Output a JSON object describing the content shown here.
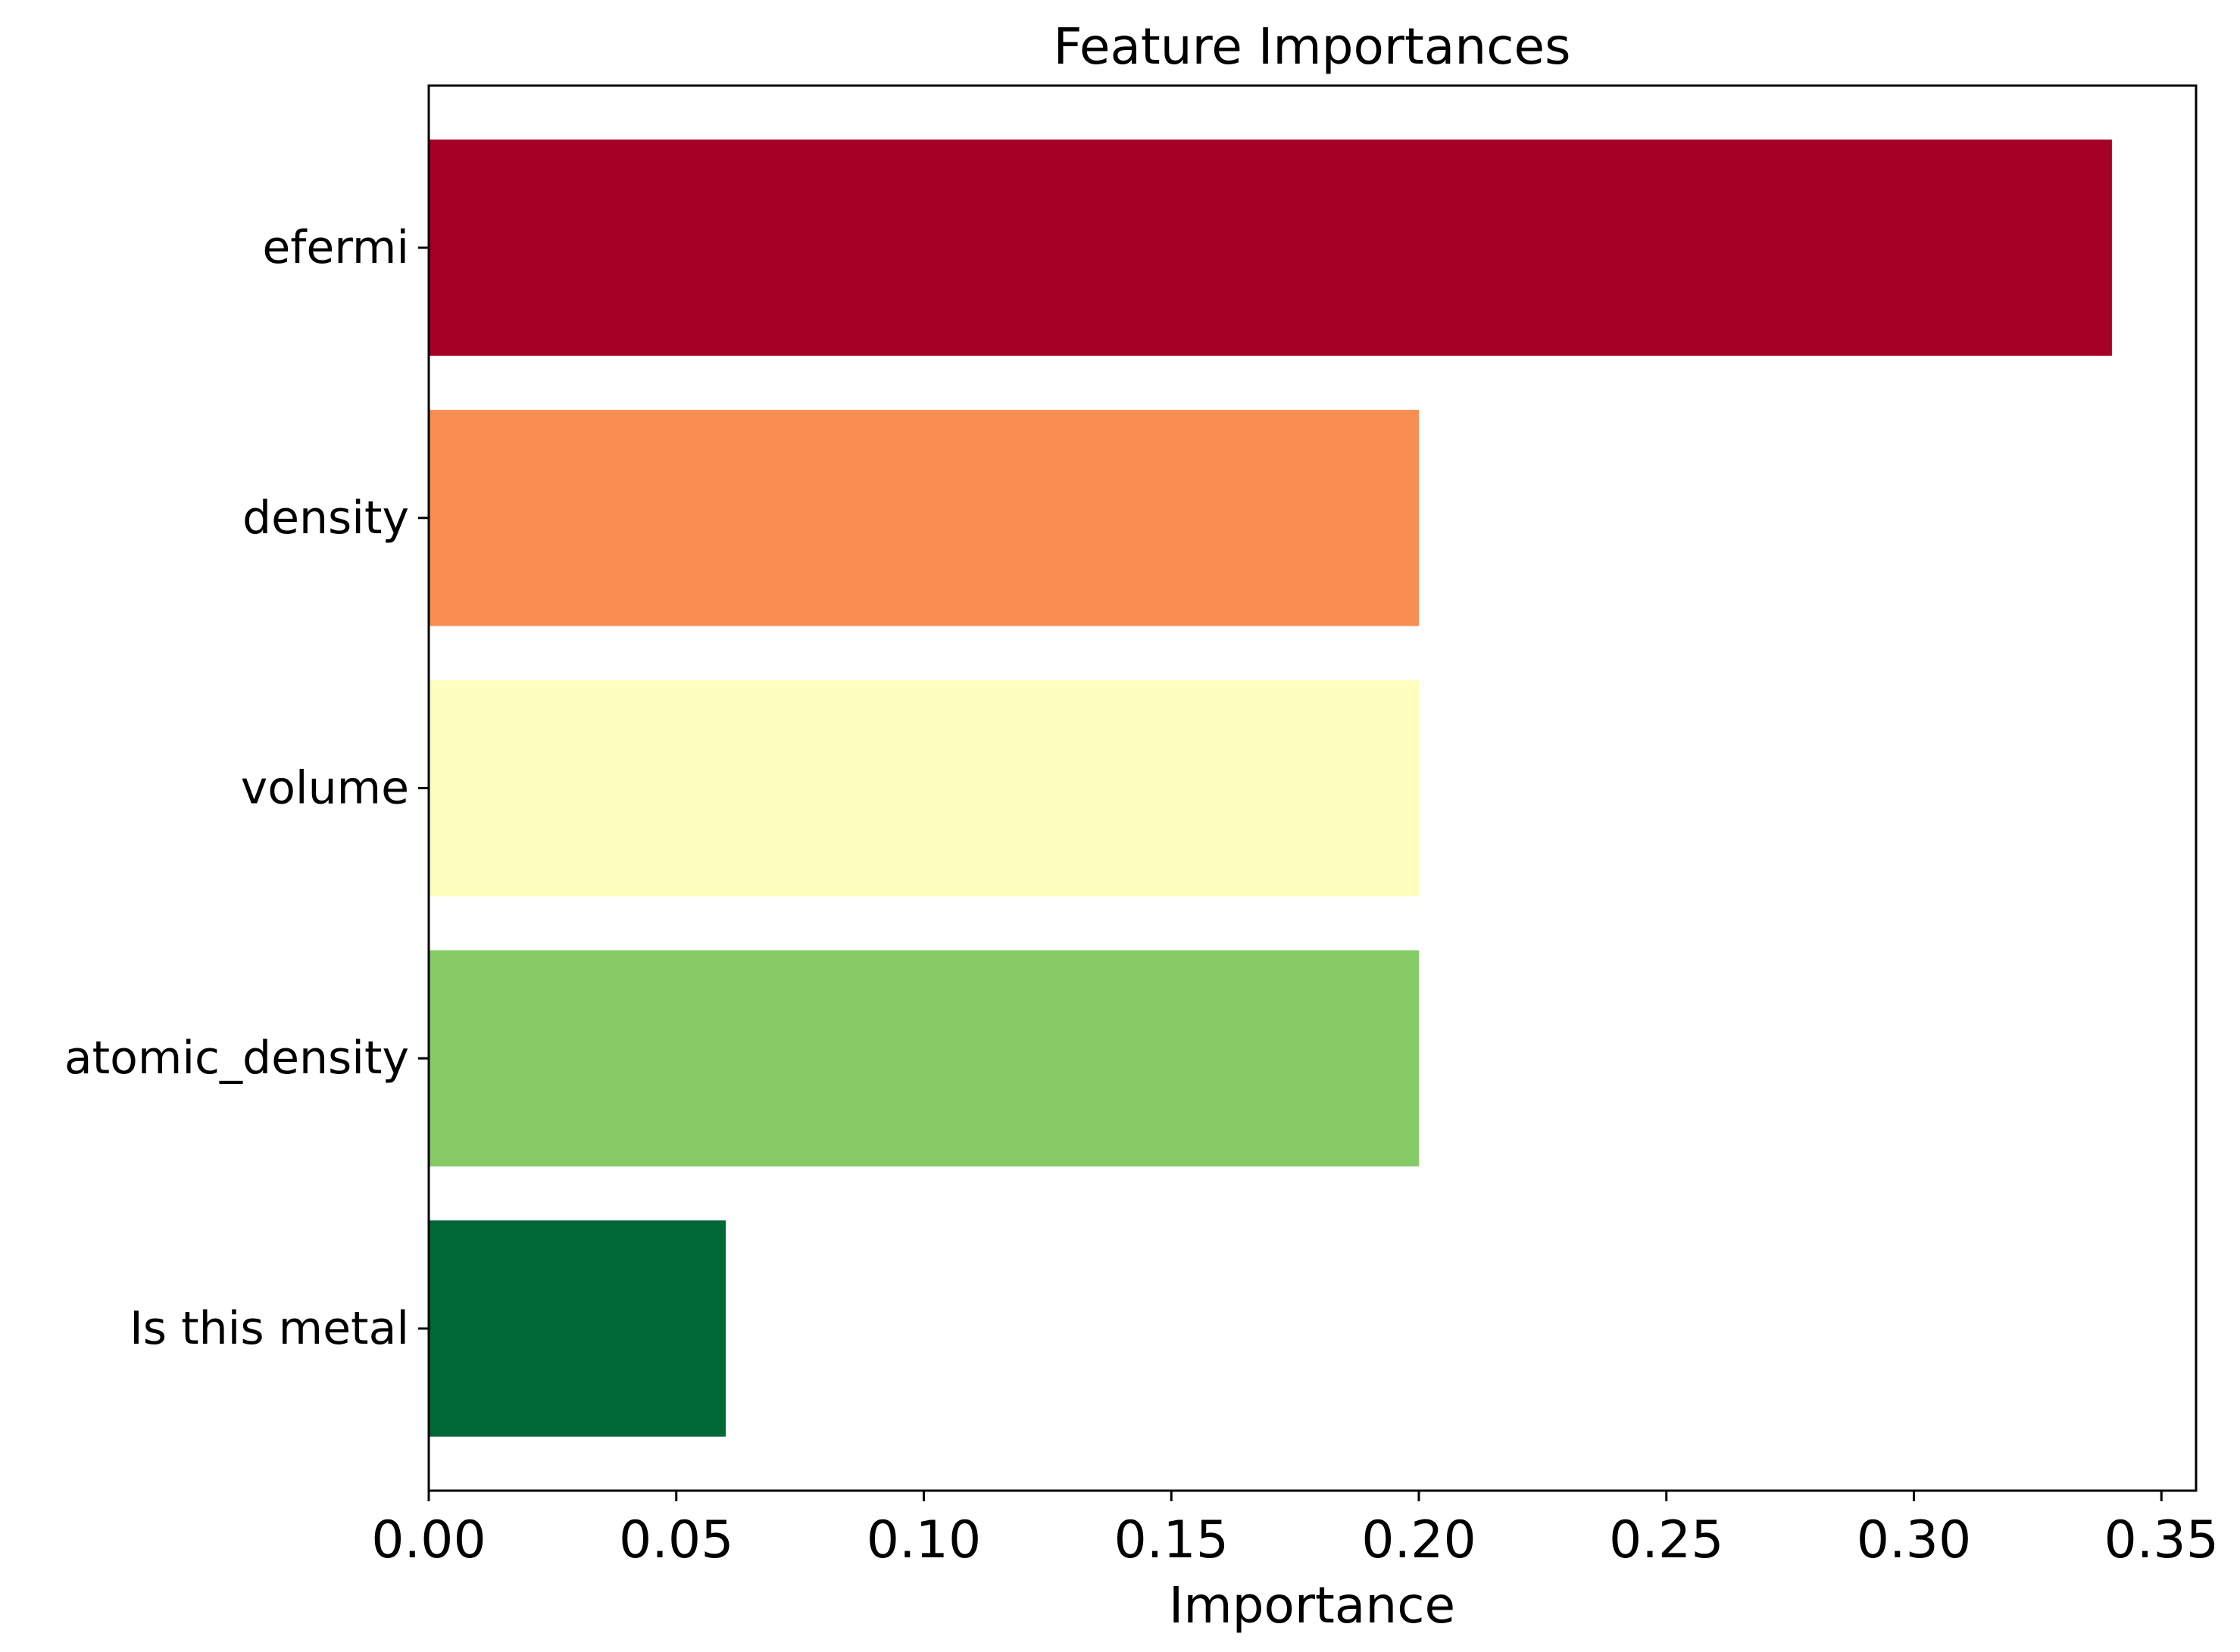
{
  "chart_data": {
    "type": "bar",
    "orientation": "horizontal",
    "title": "Feature Importances",
    "xlabel": "Importance",
    "ylabel": "",
    "categories": [
      "efermi",
      "density",
      "volume",
      "atomic_density",
      "Is this metal"
    ],
    "values": [
      0.34,
      0.2,
      0.2,
      0.2,
      0.06
    ],
    "colors": [
      "#a50026",
      "#f98e52",
      "#feffbe",
      "#86cb66",
      "#006837"
    ],
    "xlim": [
      0,
      0.357
    ],
    "xticks": [
      0.0,
      0.05,
      0.1,
      0.15,
      0.2,
      0.25,
      0.3,
      0.35
    ],
    "xtick_labels": [
      "0.00",
      "0.05",
      "0.10",
      "0.15",
      "0.20",
      "0.25",
      "0.30",
      "0.35"
    ],
    "grid": false,
    "legend": "none"
  }
}
